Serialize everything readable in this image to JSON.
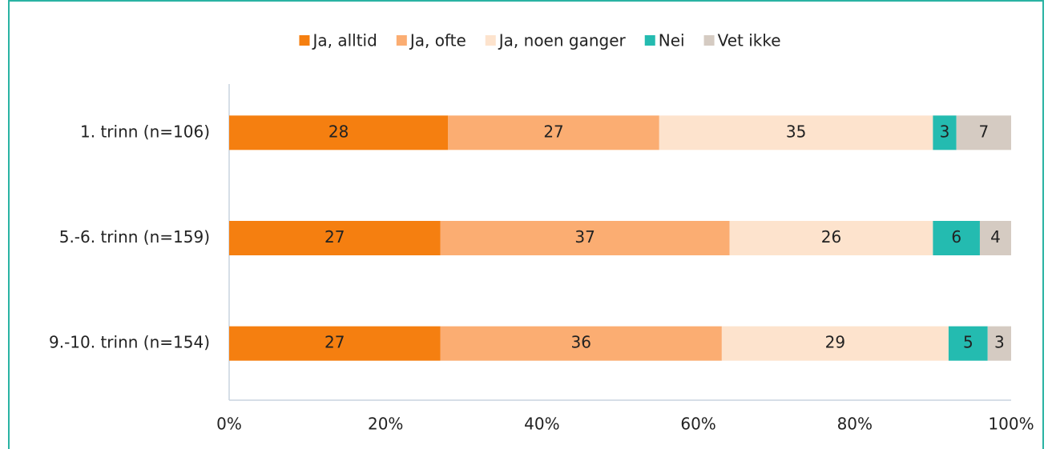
{
  "chart_data": {
    "type": "stacked_barh",
    "categories": [
      "1. trinn (n=106)",
      "5.-6. trinn (n=159)",
      "9.-10. trinn (n=154)"
    ],
    "series": [
      {
        "name": "Ja, alltid",
        "color": "#f57f10",
        "values": [
          28,
          27,
          27
        ]
      },
      {
        "name": "Ja, ofte",
        "color": "#fbad72",
        "values": [
          27,
          37,
          36
        ]
      },
      {
        "name": "Ja, noen ganger",
        "color": "#fde3cd",
        "values": [
          35,
          26,
          29
        ]
      },
      {
        "name": "Nei",
        "color": "#24bbb0",
        "values": [
          3,
          6,
          5
        ]
      },
      {
        "name": "Vet ikke",
        "color": "#d5cbc2",
        "values": [
          7,
          4,
          3
        ]
      }
    ],
    "xlim": [
      0,
      100
    ],
    "xticks": [
      {
        "value": 0,
        "label": "0%"
      },
      {
        "value": 20,
        "label": "20%"
      },
      {
        "value": 40,
        "label": "40%"
      },
      {
        "value": 60,
        "label": "60%"
      },
      {
        "value": 80,
        "label": "80%"
      },
      {
        "value": 100,
        "label": "100%"
      }
    ],
    "legend": "top"
  }
}
